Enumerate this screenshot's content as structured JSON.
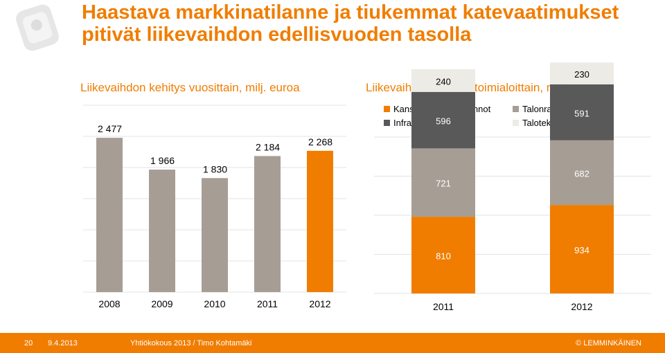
{
  "slide": {
    "title": "Haastava markkinatilanne ja tiukemmat katevaatimukset pitivät liikevaihdon edellisvuoden tasolla",
    "subtitle_left": "Liikevaihdon kehitys vuosittain, milj. euroa",
    "subtitle_right": "Liikevaihdon kehitys toimialoittain, milj. euroa"
  },
  "footer": {
    "page": "20",
    "date": "9.4.2013",
    "text": "Yhtiökokous 2013 / Timo Kohtamäki",
    "brand": "© LEMMINKÄINEN"
  },
  "colors": {
    "accent": "#f07d00",
    "bar_gray": "#a69d94",
    "dark_gray": "#595959",
    "light_gray": "#edebe6",
    "grid": "#e3e3e3"
  },
  "chart_data": [
    {
      "type": "bar",
      "categories": [
        "2008",
        "2009",
        "2010",
        "2011",
        "2012"
      ],
      "values": [
        2477,
        1966,
        1830,
        2184,
        2268
      ],
      "value_labels": [
        "2 477",
        "1 966",
        "1 830",
        "2 184",
        "2 268"
      ],
      "highlight_index": 4,
      "ylim": [
        0,
        3000
      ],
      "grid": true
    },
    {
      "type": "bar",
      "stacked": true,
      "categories": [
        "2011",
        "2012"
      ],
      "legend_position": "top",
      "ylim": [
        0,
        2800
      ],
      "series": [
        {
          "name": "Kansainväliset toiminnot",
          "values": [
            810,
            934
          ],
          "labels": [
            "810",
            "934"
          ],
          "color": "#f07d00",
          "text_color": "#ffffff"
        },
        {
          "name": "Talonrakentaminen",
          "values": [
            721,
            682
          ],
          "labels": [
            "721",
            "682"
          ],
          "color": "#a69d94",
          "text_color": "#ffffff"
        },
        {
          "name": "Infrarakentaminen",
          "values": [
            596,
            591
          ],
          "labels": [
            "596",
            "591"
          ],
          "color": "#595959",
          "text_color": "#ffffff"
        },
        {
          "name": "Talotekniikka",
          "values": [
            240,
            230
          ],
          "labels": [
            "240",
            "230"
          ],
          "color": "#edebe6",
          "text_color": "#000000"
        }
      ]
    }
  ]
}
